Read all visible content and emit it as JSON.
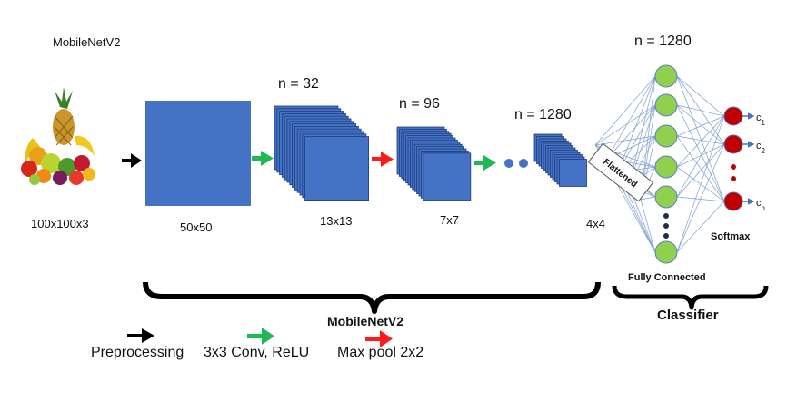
{
  "diagram": {
    "title": "MobileNetV2",
    "input_size": "100x100x3",
    "stages": [
      {
        "size": "50x50",
        "n": ""
      },
      {
        "size": "13x13",
        "n": "n = 32"
      },
      {
        "size": "7x7",
        "n": "n = 96"
      },
      {
        "size": "4x4",
        "n": "n = 1280"
      }
    ],
    "flattened_label": "Flattened",
    "fc_count": "n = 1280",
    "fc_label": "Fully Connected",
    "softmax_label": "Softmax",
    "class_outputs": [
      "c1",
      "c2",
      "cn"
    ],
    "class_subs": [
      "1",
      "2",
      "n"
    ],
    "group_labels": {
      "backbone": "MobileNetV2",
      "classifier": "Classifier"
    },
    "legend": [
      {
        "label": "Preprocessing",
        "color": "#000000"
      },
      {
        "label": "3x3 Conv, ReLU",
        "color": "#1db954"
      },
      {
        "label": "Max pool 2x2",
        "color": "#ff1a1a"
      }
    ],
    "colors": {
      "feature_map": "#4472c4",
      "neuron": "#8fd14f",
      "output_neuron": "#c00000",
      "connection": "#7f9fd3"
    },
    "icon": "fruit-basket-icon"
  }
}
